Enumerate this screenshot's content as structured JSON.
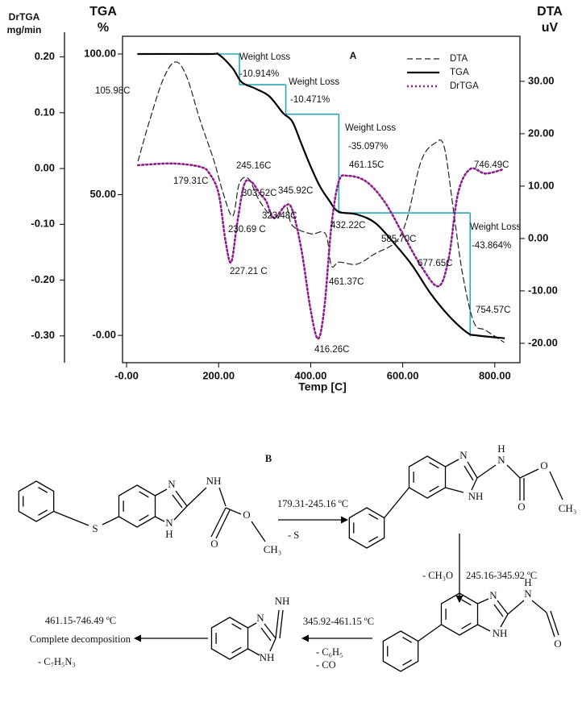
{
  "chart_data": {
    "type": "line",
    "panel_label": "A",
    "xlabel": "Temp  [C]",
    "ylabel": "TGA",
    "y_unit": "%",
    "y2label": "DTA",
    "y2_unit": "uV",
    "y3label": "DrTGA",
    "y3_unit": "mg/min",
    "xlim": [
      -8.8,
      854.6
    ],
    "xticks": [
      {
        "value": 0,
        "label": "-0.00"
      },
      {
        "value": 200,
        "label": "200.00"
      },
      {
        "value": 400,
        "label": "400.00"
      },
      {
        "value": 600,
        "label": "600.00"
      },
      {
        "value": 800,
        "label": "800.00"
      }
    ],
    "ylim": [
      -9.7,
      106.3
    ],
    "yticks": [
      {
        "value": 0,
        "label": "-0.00"
      },
      {
        "value": 50,
        "label": "50.00"
      },
      {
        "value": 100,
        "label": "100.00"
      }
    ],
    "y2lim": [
      -23.7,
      38.6
    ],
    "y2ticks": [
      {
        "value": -20,
        "label": "-20.00"
      },
      {
        "value": -10,
        "label": "-10.00"
      },
      {
        "value": 0,
        "label": "0.00"
      },
      {
        "value": 10,
        "label": "10.00"
      },
      {
        "value": 20,
        "label": "20.00"
      },
      {
        "value": 30,
        "label": "30.00"
      }
    ],
    "y3lim": [
      -0.348,
      0.237
    ],
    "y3ticks": [
      {
        "value": -0.3,
        "label": "-0.30"
      },
      {
        "value": -0.2,
        "label": "-0.20"
      },
      {
        "value": -0.1,
        "label": "-0.10"
      },
      {
        "value": 0,
        "label": "0.00"
      },
      {
        "value": 0.1,
        "label": "0.10"
      },
      {
        "value": 0.2,
        "label": "0.20"
      }
    ],
    "grid": false,
    "legend": "upper right",
    "series": [
      {
        "name": "DTA",
        "color": "#222222",
        "style": "dashed",
        "axis": "y2",
        "x": [
          25,
          50,
          80,
          105.98,
          130,
          160,
          190,
          210,
          230.69,
          245,
          265,
          290,
          323.48,
          345.92,
          360,
          400,
          432.22,
          445,
          461.37,
          500,
          540,
          585.7,
          610,
          640,
          670,
          690,
          710,
          730,
          754.57,
          780,
          820
        ],
        "values": [
          14.8,
          22.5,
          30.5,
          33.7,
          31,
          22.5,
          14.8,
          8.6,
          4.3,
          10.5,
          11.4,
          7,
          3.7,
          6.3,
          2.5,
          0.9,
          0.9,
          -5.2,
          -4.5,
          -4.9,
          -2.9,
          -0.6,
          4,
          14.8,
          18.2,
          17.5,
          5.5,
          -6.8,
          -16,
          -17.5,
          -19.8
        ]
      },
      {
        "name": "TGA",
        "color": "#000000",
        "style": "solid",
        "axis": "y",
        "x": [
          25,
          180,
          200,
          230,
          250,
          280,
          310,
          340,
          360,
          380,
          400,
          420,
          440,
          460,
          500,
          540,
          580,
          620,
          660,
          700,
          740,
          760,
          820
        ],
        "values": [
          100,
          100,
          99.8,
          95,
          90,
          87.7,
          85,
          79,
          76,
          68,
          60,
          53,
          48,
          44,
          43,
          40,
          33,
          25,
          15,
          7,
          1,
          0,
          -1
        ]
      },
      {
        "name": "DrTGA",
        "color": "#8b1f8b",
        "style": "dotted",
        "axis": "y3",
        "x": [
          25,
          100,
          160,
          180,
          200,
          215,
          227.21,
          240,
          255,
          270,
          290,
          303.52,
          320,
          345.92,
          360,
          380,
          400,
          416.26,
          430,
          445,
          461.15,
          480,
          520,
          560,
          600,
          640,
          677.65,
          700,
          720,
          746.49,
          780,
          820
        ],
        "values": [
          0.006,
          0.009,
          0.003,
          -0.009,
          -0.045,
          -0.13,
          -0.168,
          -0.1,
          -0.03,
          -0.023,
          -0.045,
          -0.059,
          -0.088,
          -0.066,
          -0.074,
          -0.146,
          -0.254,
          -0.305,
          -0.247,
          -0.103,
          -0.023,
          -0.013,
          -0.023,
          -0.059,
          -0.117,
          -0.175,
          -0.211,
          -0.16,
          -0.045,
          -0.001,
          -0.009,
          -0.001
        ]
      }
    ],
    "weight_loss_steps": {
      "color": "#2ca7b8",
      "x": [
        198,
        245.16,
        345.92,
        461.15,
        746.49
      ],
      "values": [
        100,
        89.09,
        78.62,
        43.52,
        -0.35
      ]
    },
    "annotations": [
      "105.98C",
      "179.31C",
      "245.16C",
      "303.52C",
      "345.92C",
      "230.69 C",
      "323.48C",
      "432.22C",
      "585.70C",
      "227.21 C",
      "461.37C",
      "677.65C",
      "746.49C",
      "754.57C",
      "416.26C",
      "461.15C",
      "Weight Loss",
      "-10.914%",
      "Weight Loss",
      "-10.471%",
      "Weight Loss",
      "-35.097%",
      "Weight Loss",
      "-43.864%"
    ]
  },
  "scheme": {
    "label": "B",
    "molecules": [
      {
        "atoms": [
          "S",
          "N",
          "N",
          "H",
          "NH",
          "O",
          "O",
          "CH₃"
        ]
      },
      {
        "atoms": [
          "N",
          "NH",
          "H",
          "N",
          "O",
          "O",
          "CH₃"
        ]
      },
      {
        "atoms": [
          "N",
          "NH",
          "H",
          "N",
          "O"
        ]
      },
      {
        "atoms": [
          "N",
          "NH",
          "NH"
        ]
      }
    ],
    "reactions": [
      {
        "temperature": "179.31-245.16 ºC",
        "losses": [
          "- S"
        ]
      },
      {
        "temperature": "245.16-345.92 ºC",
        "losses": [
          "- CH₃O"
        ]
      },
      {
        "temperature": "345.92-461.15 ºC",
        "losses": [
          "- C₆H₅",
          "- CO"
        ]
      },
      {
        "temperature": "461.15-746.49 ºC",
        "losses": [
          "- C₇H₅N₃"
        ]
      }
    ],
    "product": "Complete decomposition"
  }
}
